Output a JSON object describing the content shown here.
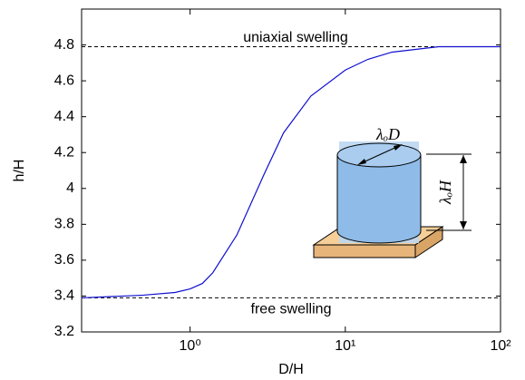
{
  "chart_data": {
    "type": "line",
    "x_label": "D/H",
    "y_label": "h/H",
    "x": [
      0.2,
      0.5,
      0.8,
      1.0,
      1.2,
      1.4,
      2,
      3,
      4,
      6,
      10,
      14,
      20,
      40,
      100
    ],
    "series": [
      {
        "name": "h/H",
        "color": "#1010d0",
        "values": [
          3.39,
          3.405,
          3.42,
          3.44,
          3.47,
          3.53,
          3.74,
          4.08,
          4.31,
          4.515,
          4.66,
          4.72,
          4.76,
          4.79,
          4.79
        ]
      }
    ],
    "xlim": [
      0.2,
      100
    ],
    "ylim": [
      3.2,
      5.0
    ],
    "xscale": "log",
    "xticks": [
      {
        "value": 1,
        "label": "10⁰"
      },
      {
        "value": 10,
        "label": "10¹"
      },
      {
        "value": 100,
        "label": "10²"
      }
    ],
    "yticks": [
      3.2,
      3.4,
      3.6,
      3.8,
      4,
      4.2,
      4.4,
      4.6,
      4.8
    ],
    "hlines": [
      {
        "value": 4.79,
        "label": "uniaxial swelling"
      },
      {
        "value": 3.39,
        "label": "free swelling"
      }
    ],
    "inset_labels": [
      "λₒD",
      "λₒH"
    ]
  }
}
